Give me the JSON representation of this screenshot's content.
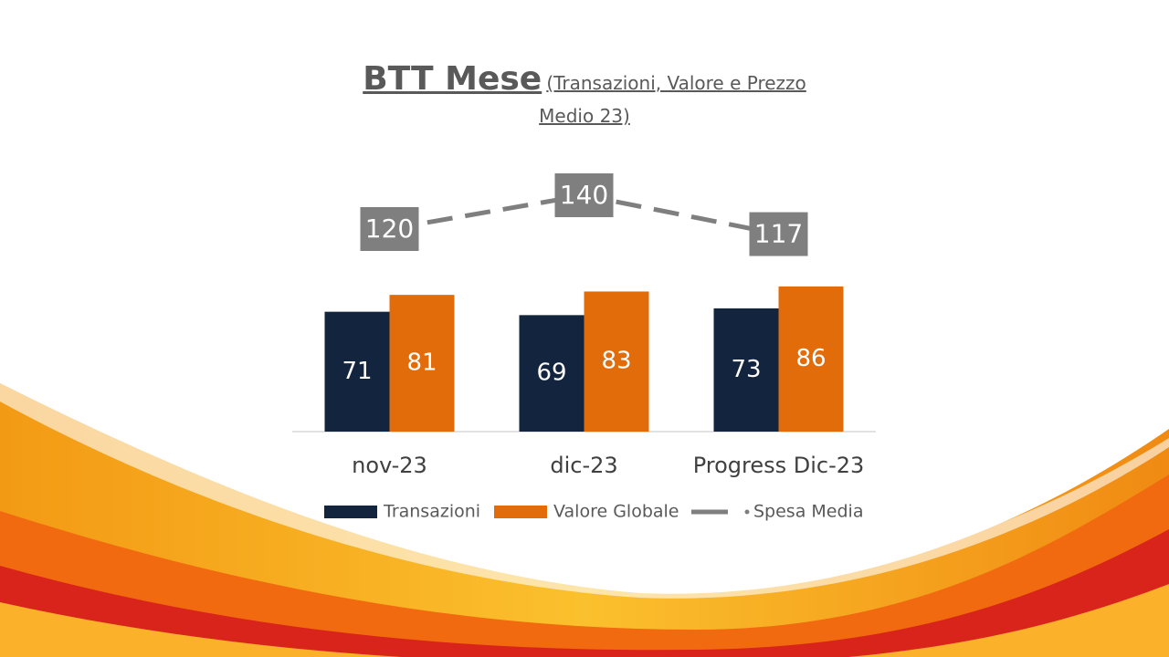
{
  "chart_data": {
    "type": "bar",
    "title": "BTT Mese",
    "subtitle": "(Transazioni, Valore e Prezzo Medio 23)",
    "categories": [
      "nov-23",
      "dic-23",
      "Progress Dic-23"
    ],
    "series": [
      {
        "name": "Transazioni",
        "type": "bar",
        "color": "#13243f",
        "values": [
          71,
          69,
          73
        ]
      },
      {
        "name": "Valore Globale",
        "type": "bar",
        "color": "#e36c0a",
        "values": [
          81,
          83,
          86
        ]
      },
      {
        "name": "Spesa Media",
        "type": "line",
        "color": "#7f7f7f",
        "values": [
          120,
          140,
          117
        ]
      }
    ],
    "legend": "bottom"
  }
}
